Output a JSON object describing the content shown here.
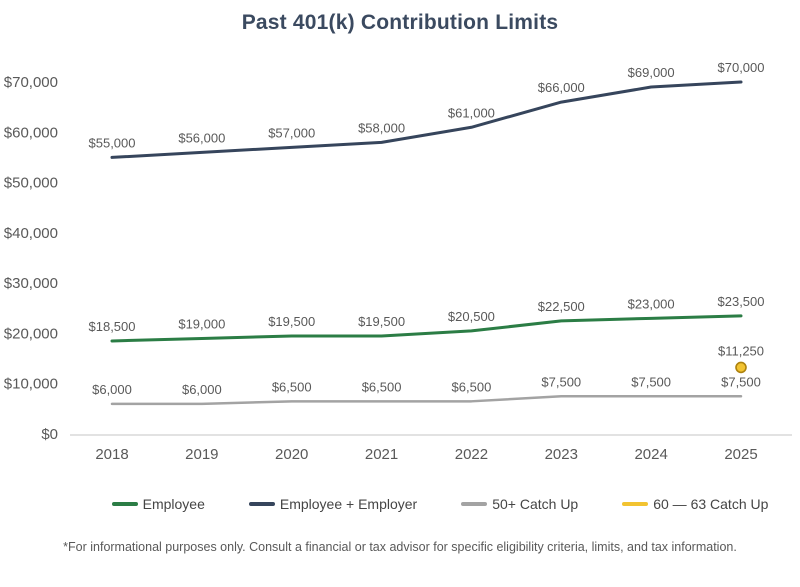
{
  "title": "Past 401(k) Contribution Limits",
  "footnote": "*For informational purposes only. Consult a financial or tax advisor for specific eligibility criteria, limits, and tax information.",
  "colors": {
    "title_text": "#3b4a60",
    "data_label": "#595959",
    "axis_label": "#595959",
    "axis_line": "#d9d9d9",
    "legend_text": "#454545",
    "background": "#ffffff"
  },
  "chart_data": {
    "type": "line",
    "title": "Past 401(k) Contribution Limits",
    "categories": [
      "2018",
      "2019",
      "2020",
      "2021",
      "2022",
      "2023",
      "2024",
      "2025"
    ],
    "series": [
      {
        "name": "Employee",
        "style": "line",
        "color": "#2b7d45",
        "stroke_width": 3,
        "values": [
          18500,
          19000,
          19500,
          19500,
          20500,
          22500,
          23000,
          23500
        ]
      },
      {
        "name": "Employee + Employer",
        "style": "line",
        "color": "#36455c",
        "stroke_width": 3,
        "values": [
          55000,
          56000,
          57000,
          58000,
          61000,
          66000,
          69000,
          70000
        ]
      },
      {
        "name": "50+ Catch Up",
        "style": "line",
        "color": "#a3a3a3",
        "stroke_width": 2.5,
        "values": [
          6000,
          6000,
          6500,
          6500,
          6500,
          7500,
          7500,
          7500
        ]
      },
      {
        "name": "60 — 63 Catch Up",
        "style": "marker",
        "color": "#f2c331",
        "outline": "#ad820e",
        "stroke_width": 1.6,
        "values": [
          null,
          null,
          null,
          null,
          null,
          null,
          null,
          11250
        ]
      }
    ],
    "ylim": [
      0,
      70000
    ],
    "ytick_step": 10000,
    "ytick_format": "$#,##0",
    "data_labels": true,
    "grid": false,
    "legend_position": "bottom"
  }
}
